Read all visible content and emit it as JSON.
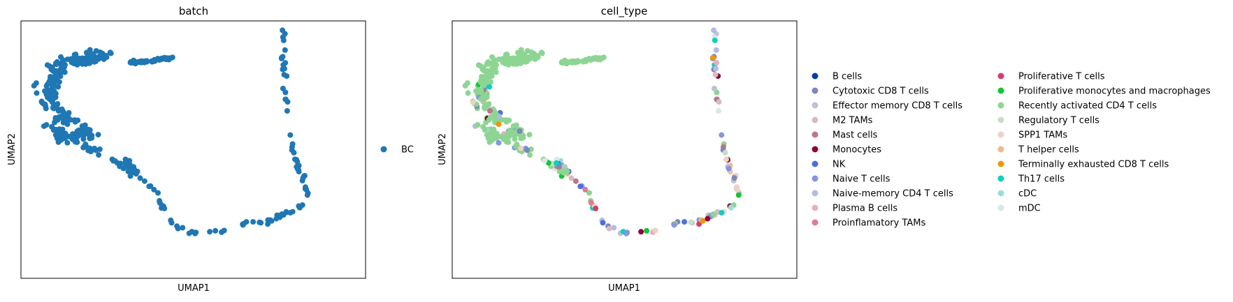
{
  "chart_data": [
    {
      "type": "scatter",
      "title": "batch",
      "xlabel": "UMAP1",
      "ylabel": "UMAP2",
      "xticks": [],
      "yticks": [],
      "grid": false,
      "legend_position": "right",
      "point_color": "#1f77b4",
      "legend": [
        {
          "label": "BC",
          "color": "#1f77b4"
        }
      ]
    },
    {
      "type": "scatter",
      "title": "cell_type",
      "xlabel": "UMAP1",
      "ylabel": "UMAP2",
      "xticks": [],
      "yticks": [],
      "grid": false,
      "legend_position": "right",
      "legend": [
        {
          "label": "B cells",
          "color": "#023fa5"
        },
        {
          "label": "Cytotoxic CD8 T cells",
          "color": "#7d87b9"
        },
        {
          "label": "Effector memory CD8 T cells",
          "color": "#bec1d4"
        },
        {
          "label": "M2 TAMs",
          "color": "#d6bcc0"
        },
        {
          "label": "Mast cells",
          "color": "#bb7784"
        },
        {
          "label": "Monocytes",
          "color": "#8e063b"
        },
        {
          "label": "NK",
          "color": "#4a6fe3"
        },
        {
          "label": "Naive T cells",
          "color": "#8595e1"
        },
        {
          "label": "Naive-memory CD4 T cells",
          "color": "#b5bbe3"
        },
        {
          "label": "Plasma B cells",
          "color": "#e6afb9"
        },
        {
          "label": "Proinflamatory TAMs",
          "color": "#e07b91"
        },
        {
          "label": "Proliferative T cells",
          "color": "#d33f6a"
        },
        {
          "label": "Proliferative monocytes and macrophages",
          "color": "#11c638"
        },
        {
          "label": "Recently activated CD4 T cells",
          "color": "#8dd593"
        },
        {
          "label": "Regulatory T cells",
          "color": "#c6dec7"
        },
        {
          "label": "SPP1 TAMs",
          "color": "#ead3c6"
        },
        {
          "label": "T helper cells",
          "color": "#f0b98d"
        },
        {
          "label": "Terminally exhausted CD8 T cells",
          "color": "#ef9708"
        },
        {
          "label": "Th17 cells",
          "color": "#0fcfc0"
        },
        {
          "label": "cDC",
          "color": "#9cded6"
        },
        {
          "label": "mDC",
          "color": "#d5eae7"
        }
      ]
    }
  ]
}
